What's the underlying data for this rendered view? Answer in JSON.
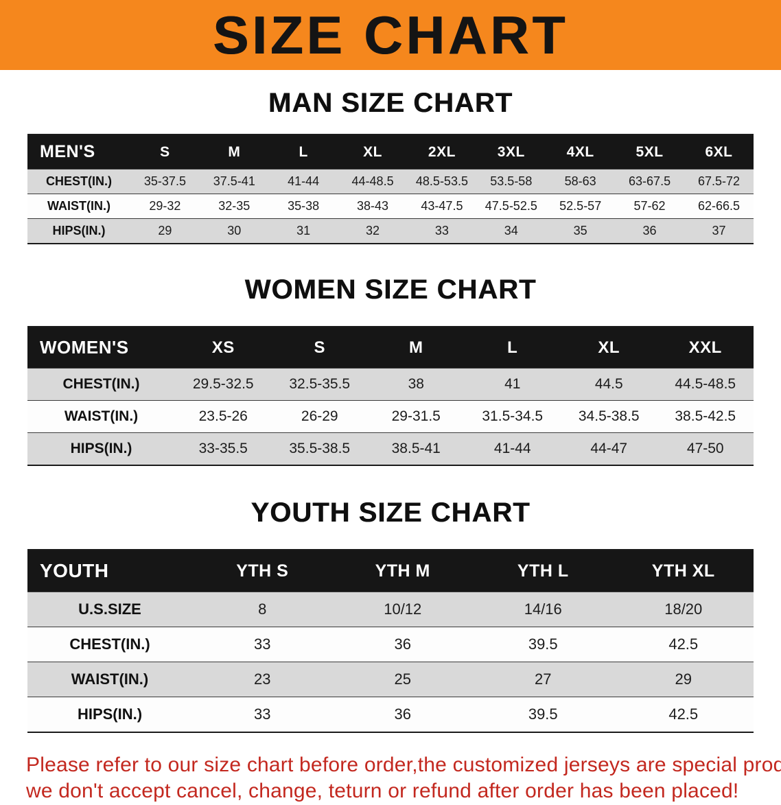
{
  "banner": {
    "title": "SIZE CHART",
    "bg_color": "#f5871d",
    "text_color": "#141414"
  },
  "sections": [
    {
      "heading": "MAN SIZE CHART",
      "header": [
        "MEN'S",
        "S",
        "M",
        "L",
        "XL",
        "2XL",
        "3XL",
        "4XL",
        "5XL",
        "6XL"
      ],
      "rows": [
        [
          "CHEST(IN.)",
          "35-37.5",
          "37.5-41",
          "41-44",
          "44-48.5",
          "48.5-53.5",
          "53.5-58",
          "58-63",
          "63-67.5",
          "67.5-72"
        ],
        [
          "WAIST(IN.)",
          "29-32",
          "32-35",
          "35-38",
          "38-43",
          "43-47.5",
          "47.5-52.5",
          "52.5-57",
          "57-62",
          "62-66.5"
        ],
        [
          "HIPS(IN.)",
          "29",
          "30",
          "31",
          "32",
          "33",
          "34",
          "35",
          "36",
          "37"
        ]
      ]
    },
    {
      "heading": "WOMEN SIZE CHART",
      "header": [
        "WOMEN'S",
        "XS",
        "S",
        "M",
        "L",
        "XL",
        "XXL"
      ],
      "rows": [
        [
          "CHEST(IN.)",
          "29.5-32.5",
          "32.5-35.5",
          "38",
          "41",
          "44.5",
          "44.5-48.5"
        ],
        [
          "WAIST(IN.)",
          "23.5-26",
          "26-29",
          "29-31.5",
          "31.5-34.5",
          "34.5-38.5",
          "38.5-42.5"
        ],
        [
          "HIPS(IN.)",
          "33-35.5",
          "35.5-38.5",
          "38.5-41",
          "41-44",
          "44-47",
          "47-50"
        ]
      ]
    },
    {
      "heading": "YOUTH SIZE CHART",
      "header": [
        "YOUTH",
        "YTH S",
        "YTH M",
        "YTH L",
        "YTH XL"
      ],
      "rows": [
        [
          "U.S.SIZE",
          "8",
          "10/12",
          "14/16",
          "18/20"
        ],
        [
          "CHEST(IN.)",
          "33",
          "36",
          "39.5",
          "42.5"
        ],
        [
          "WAIST(IN.)",
          "23",
          "25",
          "27",
          "29"
        ],
        [
          "HIPS(IN.)",
          "33",
          "36",
          "39.5",
          "42.5"
        ]
      ]
    }
  ],
  "disclaimer": {
    "line1": "Please refer to our size chart before order,the customized jerseys are special products,",
    "line2": "we don't accept cancel, change, teturn or refund after order has been placed!",
    "color": "#c3281f"
  }
}
